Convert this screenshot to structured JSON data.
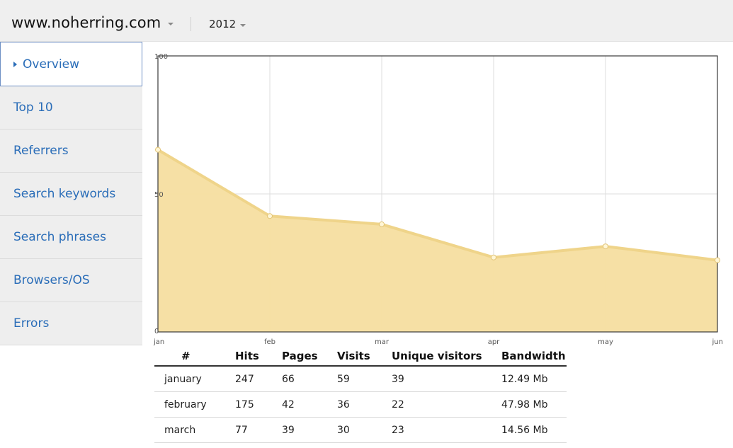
{
  "header": {
    "site": "www.noherring.com",
    "year": "2012"
  },
  "sidebar": {
    "items": [
      {
        "label": "Overview",
        "active": true
      },
      {
        "label": "Top 10"
      },
      {
        "label": "Referrers"
      },
      {
        "label": "Search keywords"
      },
      {
        "label": "Search phrases"
      },
      {
        "label": "Browsers/OS"
      },
      {
        "label": "Errors"
      }
    ]
  },
  "colors": {
    "area_fill": "#f5dea0",
    "area_line": "#efd48a",
    "point_fill": "#fff6d6"
  },
  "chart_data": {
    "type": "area",
    "categories": [
      "jan",
      "feb",
      "mar",
      "apr",
      "may",
      "jun"
    ],
    "values": [
      66,
      42,
      39,
      27,
      31,
      26
    ],
    "yticks": [
      "0",
      "50",
      "100"
    ],
    "ylim": [
      0,
      100
    ],
    "grid": true
  },
  "table": {
    "headers": [
      "#",
      "Hits",
      "Pages",
      "Visits",
      "Unique visitors",
      "Bandwidth"
    ],
    "rows": [
      [
        "january",
        "247",
        "66",
        "59",
        "39",
        "12.49 Mb"
      ],
      [
        "february",
        "175",
        "42",
        "36",
        "22",
        "47.98 Mb"
      ],
      [
        "march",
        "77",
        "39",
        "30",
        "23",
        "14.56 Mb"
      ]
    ]
  }
}
